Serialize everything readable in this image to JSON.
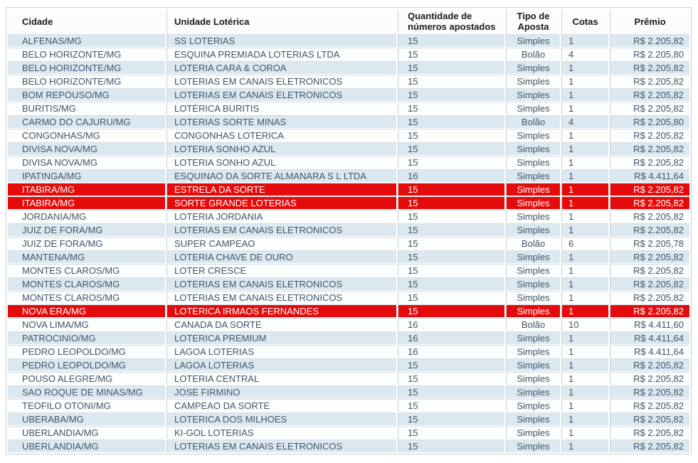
{
  "colors": {
    "stripe_odd_bg": "#dce8f0",
    "stripe_even_bg": "#fcfdfd",
    "header_bg": "#fbfcfd",
    "header_text": "#1b1b1b",
    "text": "#425569",
    "border": "#c9ced3",
    "row_line": "#d6dbdf",
    "highlight_row_bg": "#e30b0b",
    "highlight_row_text": "#ffffff"
  },
  "table": {
    "columns": [
      {
        "key": "cidade",
        "label": "Cidade"
      },
      {
        "key": "unidade",
        "label": "Unidade Lotérica"
      },
      {
        "key": "quantidade",
        "label": "Quantidade de números apostados"
      },
      {
        "key": "tipo",
        "label": "Tipo de Aposta"
      },
      {
        "key": "cotas",
        "label": "Cotas"
      },
      {
        "key": "premio",
        "label": "Prêmio"
      }
    ],
    "rows": [
      {
        "cidade": "ALFENAS/MG",
        "unidade": "SS LOTERIAS",
        "quantidade": "15",
        "tipo": "Simples",
        "cotas": "1",
        "premio": "R$ 2.205,82",
        "highlight": false
      },
      {
        "cidade": "BELO HORIZONTE/MG",
        "unidade": "ESQUINA PREMIADA LOTERIAS LTDA",
        "quantidade": "15",
        "tipo": "Bolão",
        "cotas": "4",
        "premio": "R$ 2.205,80",
        "highlight": false
      },
      {
        "cidade": "BELO HORIZONTE/MG",
        "unidade": "LOTERIA CARA & COROA",
        "quantidade": "15",
        "tipo": "Simples",
        "cotas": "1",
        "premio": "R$ 2.205,82",
        "highlight": false
      },
      {
        "cidade": "BELO HORIZONTE/MG",
        "unidade": "LOTERIAS EM CANAIS ELETRONICOS",
        "quantidade": "15",
        "tipo": "Simples",
        "cotas": "1",
        "premio": "R$ 2.205,82",
        "highlight": false
      },
      {
        "cidade": "BOM REPOUSO/MG",
        "unidade": "LOTERIAS EM CANAIS ELETRONICOS",
        "quantidade": "15",
        "tipo": "Simples",
        "cotas": "1",
        "premio": "R$ 2.205,82",
        "highlight": false
      },
      {
        "cidade": "BURITIS/MG",
        "unidade": "LOTÉRICA BURITIS",
        "quantidade": "15",
        "tipo": "Simples",
        "cotas": "1",
        "premio": "R$ 2.205,82",
        "highlight": false
      },
      {
        "cidade": "CARMO DO CAJURU/MG",
        "unidade": "LOTERIAS SORTE MINAS",
        "quantidade": "15",
        "tipo": "Bolão",
        "cotas": "4",
        "premio": "R$ 2.205,80",
        "highlight": false
      },
      {
        "cidade": "CONGONHAS/MG",
        "unidade": "CONGONHAS LOTERICA",
        "quantidade": "15",
        "tipo": "Simples",
        "cotas": "1",
        "premio": "R$ 2.205,82",
        "highlight": false
      },
      {
        "cidade": "DIVISA NOVA/MG",
        "unidade": "LOTERIA SONHO AZUL",
        "quantidade": "15",
        "tipo": "Simples",
        "cotas": "1",
        "premio": "R$ 2.205,82",
        "highlight": false
      },
      {
        "cidade": "DIVISA NOVA/MG",
        "unidade": "LOTERIA SONHO AZUL",
        "quantidade": "15",
        "tipo": "Simples",
        "cotas": "1",
        "premio": "R$ 2.205,82",
        "highlight": false
      },
      {
        "cidade": "IPATINGA/MG",
        "unidade": "ESQUINAO DA SORTE ALMANARA S L LTDA",
        "quantidade": "16",
        "tipo": "Simples",
        "cotas": "1",
        "premio": "R$ 4.411,64",
        "highlight": false
      },
      {
        "cidade": "ITABIRA/MG",
        "unidade": "ESTRELA DA SORTE",
        "quantidade": "15",
        "tipo": "Simples",
        "cotas": "1",
        "premio": "R$ 2.205,82",
        "highlight": true
      },
      {
        "cidade": "ITABIRA/MG",
        "unidade": "SORTE GRANDE LOTERIAS",
        "quantidade": "15",
        "tipo": "Simples",
        "cotas": "1",
        "premio": "R$ 2.205,82",
        "highlight": true
      },
      {
        "cidade": "JORDANIA/MG",
        "unidade": "LOTERIA JORDANIA",
        "quantidade": "15",
        "tipo": "Simples",
        "cotas": "1",
        "premio": "R$ 2.205,82",
        "highlight": false
      },
      {
        "cidade": "JUIZ DE FORA/MG",
        "unidade": "LOTERIAS EM CANAIS ELETRONICOS",
        "quantidade": "15",
        "tipo": "Simples",
        "cotas": "1",
        "premio": "R$ 2.205,82",
        "highlight": false
      },
      {
        "cidade": "JUIZ DE FORA/MG",
        "unidade": "SUPER CAMPEAO",
        "quantidade": "15",
        "tipo": "Bolão",
        "cotas": "6",
        "premio": "R$ 2.205,78",
        "highlight": false
      },
      {
        "cidade": "MANTENA/MG",
        "unidade": "LOTERIA CHAVE DE OURO",
        "quantidade": "15",
        "tipo": "Simples",
        "cotas": "1",
        "premio": "R$ 2.205,82",
        "highlight": false
      },
      {
        "cidade": "MONTES CLAROS/MG",
        "unidade": "LOTER CRESCE",
        "quantidade": "15",
        "tipo": "Simples",
        "cotas": "1",
        "premio": "R$ 2.205,82",
        "highlight": false
      },
      {
        "cidade": "MONTES CLAROS/MG",
        "unidade": "LOTERIAS EM CANAIS ELETRONICOS",
        "quantidade": "15",
        "tipo": "Simples",
        "cotas": "1",
        "premio": "R$ 2.205,82",
        "highlight": false
      },
      {
        "cidade": "MONTES CLAROS/MG",
        "unidade": "LOTERIAS EM CANAIS ELETRONICOS",
        "quantidade": "15",
        "tipo": "Simples",
        "cotas": "1",
        "premio": "R$ 2.205,82",
        "highlight": false
      },
      {
        "cidade": "NOVA ERA/MG",
        "unidade": "LOTERICA IRMAOS FERNANDES",
        "quantidade": "15",
        "tipo": "Simples",
        "cotas": "1",
        "premio": "R$ 2.205,82",
        "highlight": true
      },
      {
        "cidade": "NOVA LIMA/MG",
        "unidade": "CANADA DA SORTE",
        "quantidade": "16",
        "tipo": "Bolão",
        "cotas": "10",
        "premio": "R$ 4.411,60",
        "highlight": false
      },
      {
        "cidade": "PATROCINIO/MG",
        "unidade": "LOTERICA PREMIUM",
        "quantidade": "16",
        "tipo": "Simples",
        "cotas": "1",
        "premio": "R$ 4.411,64",
        "highlight": false
      },
      {
        "cidade": "PEDRO LEOPOLDO/MG",
        "unidade": "LAGOA LOTERIAS",
        "quantidade": "16",
        "tipo": "Simples",
        "cotas": "1",
        "premio": "R$ 4.411,64",
        "highlight": false
      },
      {
        "cidade": "PEDRO LEOPOLDO/MG",
        "unidade": "LAGOA LOTERIAS",
        "quantidade": "15",
        "tipo": "Simples",
        "cotas": "1",
        "premio": "R$ 2.205,82",
        "highlight": false
      },
      {
        "cidade": "POUSO ALEGRE/MG",
        "unidade": "LOTERIA CENTRAL",
        "quantidade": "15",
        "tipo": "Simples",
        "cotas": "1",
        "premio": "R$ 2.205,82",
        "highlight": false
      },
      {
        "cidade": "SAO ROQUE DE MINAS/MG",
        "unidade": "JOSE FIRMINO",
        "quantidade": "15",
        "tipo": "Simples",
        "cotas": "1",
        "premio": "R$ 2.205,82",
        "highlight": false
      },
      {
        "cidade": "TEOFILO OTONI/MG",
        "unidade": "CAMPEAO DA SORTE",
        "quantidade": "15",
        "tipo": "Simples",
        "cotas": "1",
        "premio": "R$ 2.205,82",
        "highlight": false
      },
      {
        "cidade": "UBERABA/MG",
        "unidade": "LOTERICA DOS MILHOES",
        "quantidade": "15",
        "tipo": "Simples",
        "cotas": "1",
        "premio": "R$ 2.205,82",
        "highlight": false
      },
      {
        "cidade": "UBERLANDIA/MG",
        "unidade": "KI-GOL LOTERIAS",
        "quantidade": "15",
        "tipo": "Simples",
        "cotas": "1",
        "premio": "R$ 2.205,82",
        "highlight": false
      },
      {
        "cidade": "UBERLANDIA/MG",
        "unidade": "LOTERIAS EM CANAIS ELETRONICOS",
        "quantidade": "15",
        "tipo": "Simples",
        "cotas": "1",
        "premio": "R$ 2.205,82",
        "highlight": false
      }
    ]
  }
}
